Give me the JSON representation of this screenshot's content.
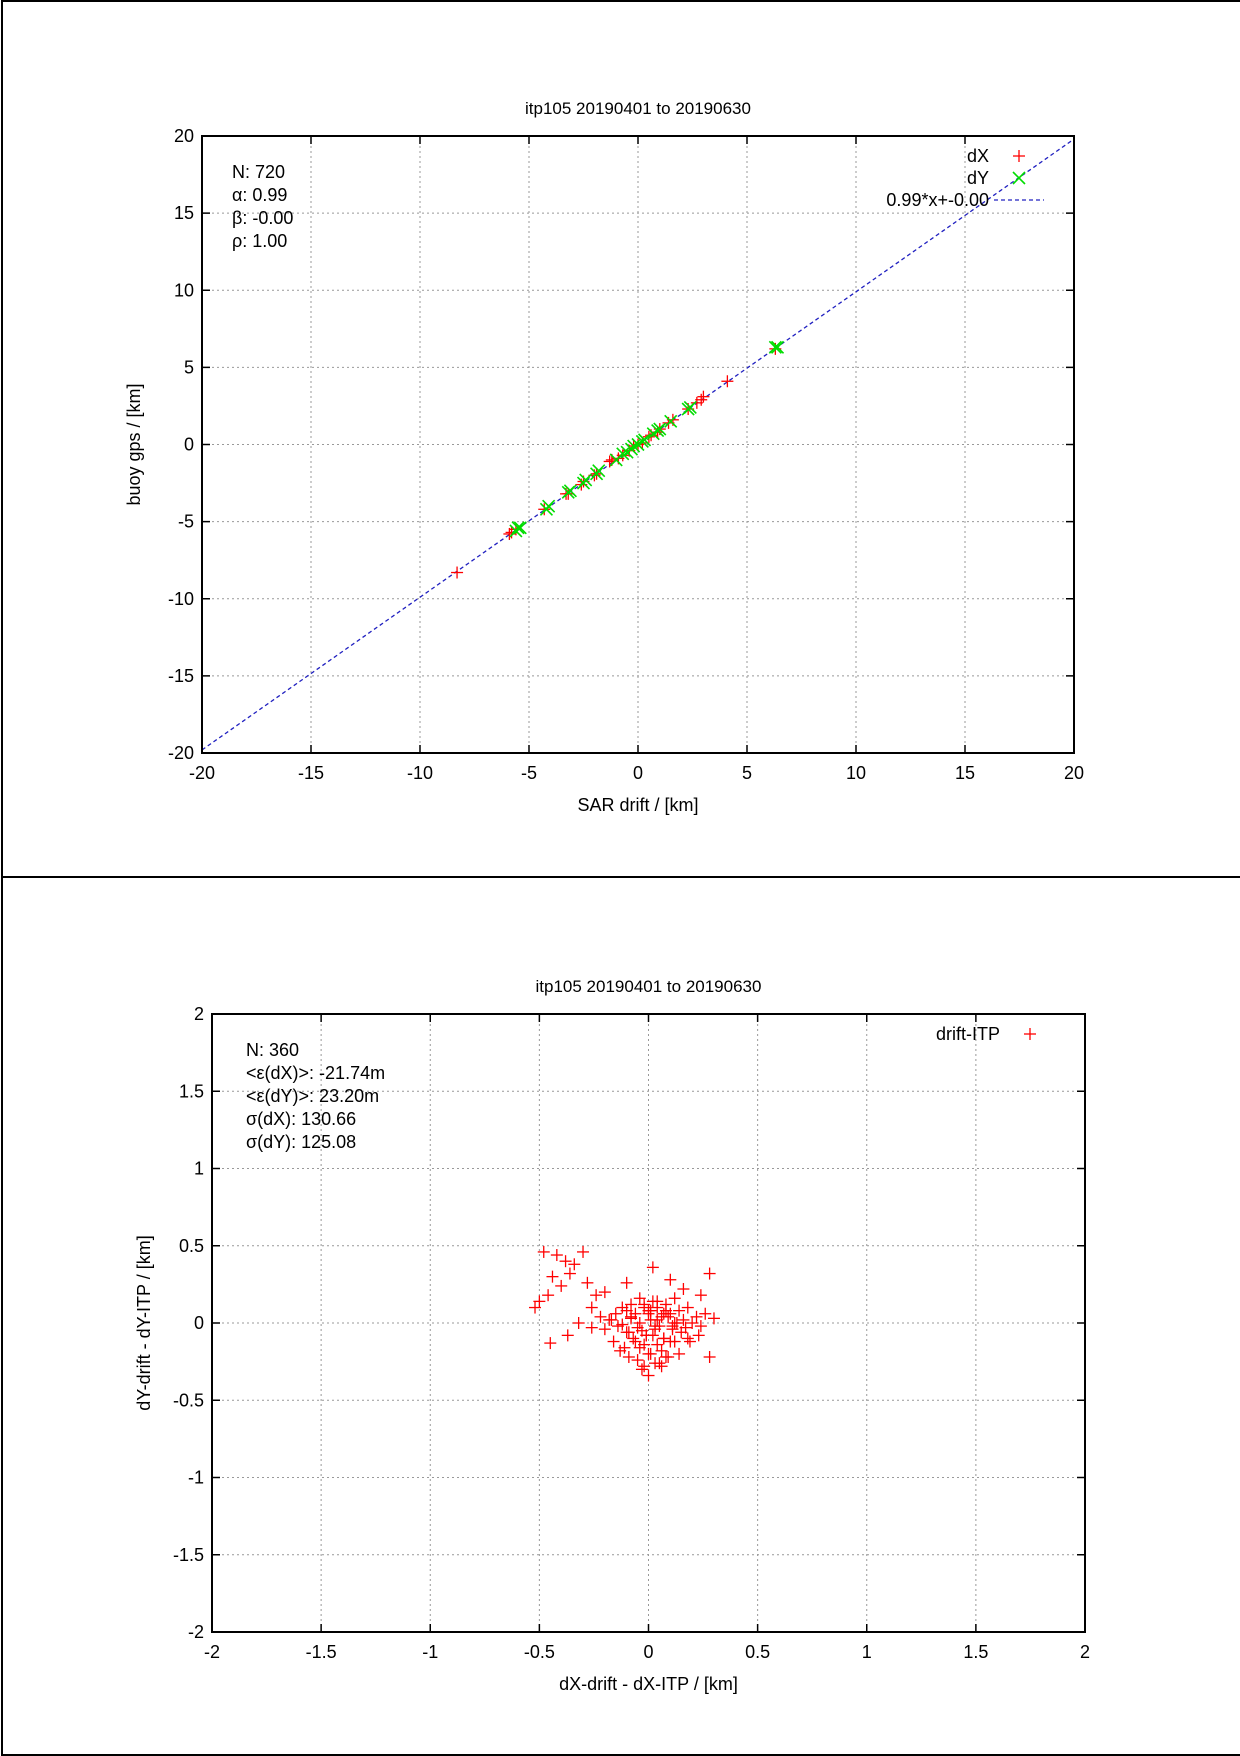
{
  "chart_data": [
    {
      "type": "scatter",
      "title": "itp105 20190401 to 20190630",
      "xlabel": "SAR drift / [km]",
      "ylabel": "buoy gps / [km]",
      "xlim": [
        -20,
        20
      ],
      "ylim": [
        -20,
        20
      ],
      "xticks": [
        -20,
        -15,
        -10,
        -5,
        0,
        5,
        10,
        15,
        20
      ],
      "yticks": [
        -20,
        -15,
        -10,
        -5,
        0,
        5,
        10,
        15,
        20
      ],
      "grid": true,
      "legend_position": "top-right",
      "stats": [
        "N: 720",
        "α: 0.99",
        "β: -0.00",
        "ρ: 1.00"
      ],
      "colors": {
        "dX": "#ff0000",
        "dY": "#00dd00",
        "fit": "#2020c0"
      },
      "series": [
        {
          "name": "dX",
          "marker": "+",
          "x": [
            -8.3,
            -5.9,
            -5.8,
            -5.6,
            -4.3,
            -3.3,
            -3.2,
            -2.6,
            -2.5,
            -2.0,
            -1.9,
            -1.3,
            -1.2,
            -0.9,
            -0.7,
            -0.4,
            -0.2,
            0.0,
            0.2,
            0.5,
            0.6,
            0.9,
            1.0,
            1.4,
            1.6,
            2.3,
            2.7,
            2.9,
            3.0,
            4.1,
            6.3
          ],
          "y": [
            -8.3,
            -5.8,
            -5.7,
            -5.5,
            -4.2,
            -3.2,
            -3.2,
            -2.6,
            -2.4,
            -2.0,
            -1.9,
            -1.1,
            -1.0,
            -0.9,
            -0.7,
            -0.4,
            -0.1,
            0.0,
            0.1,
            0.5,
            0.6,
            0.8,
            1.0,
            1.4,
            1.6,
            2.3,
            2.7,
            2.9,
            3.1,
            4.1,
            6.2
          ]
        },
        {
          "name": "dY",
          "marker": "×",
          "x": [
            -5.6,
            -5.5,
            -5.4,
            -4.2,
            -4.1,
            -3.2,
            -3.1,
            -2.5,
            -2.4,
            -1.9,
            -1.8,
            -1.0,
            -0.7,
            -0.5,
            -0.3,
            -0.2,
            0.0,
            0.2,
            0.3,
            0.7,
            0.9,
            1.0,
            1.5,
            2.3,
            2.4,
            6.3,
            6.4
          ],
          "y": [
            -5.6,
            -5.4,
            -5.4,
            -4.2,
            -4.0,
            -3.1,
            -3.0,
            -2.5,
            -2.3,
            -1.9,
            -1.7,
            -1.0,
            -0.6,
            -0.5,
            -0.3,
            -0.1,
            0.0,
            0.2,
            0.3,
            0.7,
            0.9,
            1.0,
            1.5,
            2.3,
            2.4,
            6.3,
            6.3
          ]
        }
      ],
      "fit_line": {
        "name": "0.99*x+-0.00",
        "slope": 0.99,
        "intercept": 0.0
      }
    },
    {
      "type": "scatter",
      "title": "itp105 20190401 to 20190630",
      "xlabel": "dX-drift - dX-ITP / [km]",
      "ylabel": "dY-drift - dY-ITP / [km]",
      "xlim": [
        -2,
        2
      ],
      "ylim": [
        -2,
        2
      ],
      "xticks": [
        -2,
        -1.5,
        -1,
        -0.5,
        0,
        0.5,
        1,
        1.5,
        2
      ],
      "yticks": [
        -2,
        -1.5,
        -1,
        -0.5,
        0,
        0.5,
        1,
        1.5,
        2
      ],
      "grid": true,
      "legend_position": "top-right",
      "stats": [
        "N: 360",
        "<ε(dX)>:  -21.74m",
        "<ε(dY)>: 23.20m",
        "σ(dX):  130.66",
        "σ(dY):  125.08"
      ],
      "colors": {
        "drift-ITP": "#ff0000"
      },
      "series": [
        {
          "name": "drift-ITP",
          "marker": "+",
          "x": [
            -0.48,
            -0.42,
            -0.38,
            -0.34,
            -0.3,
            -0.44,
            -0.46,
            -0.5,
            -0.52,
            -0.4,
            -0.36,
            -0.28,
            -0.24,
            -0.2,
            -0.26,
            -0.32,
            -0.1,
            0.02,
            0.1,
            0.16,
            0.24,
            0.28,
            -0.45,
            -0.37,
            -0.26,
            -0.22,
            -0.18,
            -0.15,
            -0.12,
            -0.1,
            -0.08,
            -0.06,
            -0.04,
            -0.02,
            0.0,
            0.02,
            0.04,
            0.06,
            0.08,
            0.1,
            0.12,
            0.14,
            0.16,
            0.18,
            0.2,
            0.22,
            0.24,
            0.26,
            0.3,
            -0.2,
            -0.14,
            -0.09,
            -0.05,
            -0.01,
            0.03,
            0.07,
            0.11,
            0.15,
            0.19,
            0.23,
            -0.17,
            -0.12,
            -0.08,
            -0.03,
            0.01,
            0.05,
            0.09,
            0.13,
            0.17,
            -0.16,
            -0.11,
            -0.07,
            -0.02,
            0.02,
            0.06,
            0.1,
            0.14,
            0.18,
            -0.13,
            -0.09,
            -0.04,
            0.0,
            0.04,
            0.08,
            0.12,
            -0.1,
            -0.06,
            -0.01,
            0.03,
            0.07,
            0.11,
            -0.08,
            -0.04,
            0.0,
            0.04,
            0.08,
            0.12,
            -0.05,
            -0.02,
            0.01,
            0.05,
            0.09,
            -0.03,
            0.0,
            0.03,
            0.06,
            -0.02,
            0.01,
            0.04,
            0.07,
            0.28
          ],
          "y": [
            0.46,
            0.44,
            0.4,
            0.38,
            0.46,
            0.3,
            0.18,
            0.14,
            0.1,
            0.24,
            0.32,
            0.26,
            0.18,
            0.2,
            0.1,
            0.0,
            0.26,
            0.36,
            0.28,
            0.22,
            0.18,
            0.32,
            -0.13,
            -0.08,
            -0.03,
            0.04,
            0.02,
            0.06,
            0.1,
            0.08,
            0.12,
            0.06,
            0.16,
            0.1,
            0.08,
            0.14,
            0.1,
            0.04,
            0.12,
            0.06,
            0.16,
            0.08,
            0.02,
            0.1,
            0.0,
            0.04,
            -0.02,
            0.06,
            0.03,
            -0.04,
            -0.02,
            -0.06,
            -0.03,
            -0.08,
            -0.04,
            -0.1,
            -0.02,
            -0.06,
            -0.12,
            -0.08,
            0.02,
            -0.01,
            0.03,
            -0.05,
            0.02,
            -0.02,
            0.04,
            0.0,
            -0.03,
            -0.12,
            -0.16,
            -0.1,
            -0.14,
            -0.08,
            -0.18,
            -0.12,
            -0.2,
            -0.1,
            -0.18,
            -0.22,
            -0.16,
            -0.2,
            -0.14,
            -0.22,
            -0.12,
            -0.06,
            -0.12,
            -0.08,
            -0.02,
            -0.1,
            -0.04,
            0.04,
            0.0,
            0.06,
            0.02,
            0.08,
            0.0,
            -0.24,
            -0.28,
            -0.2,
            -0.26,
            -0.22,
            -0.3,
            -0.34,
            -0.26,
            -0.28,
            0.12,
            0.08,
            0.14,
            0.06,
            -0.22
          ]
        }
      ]
    }
  ]
}
